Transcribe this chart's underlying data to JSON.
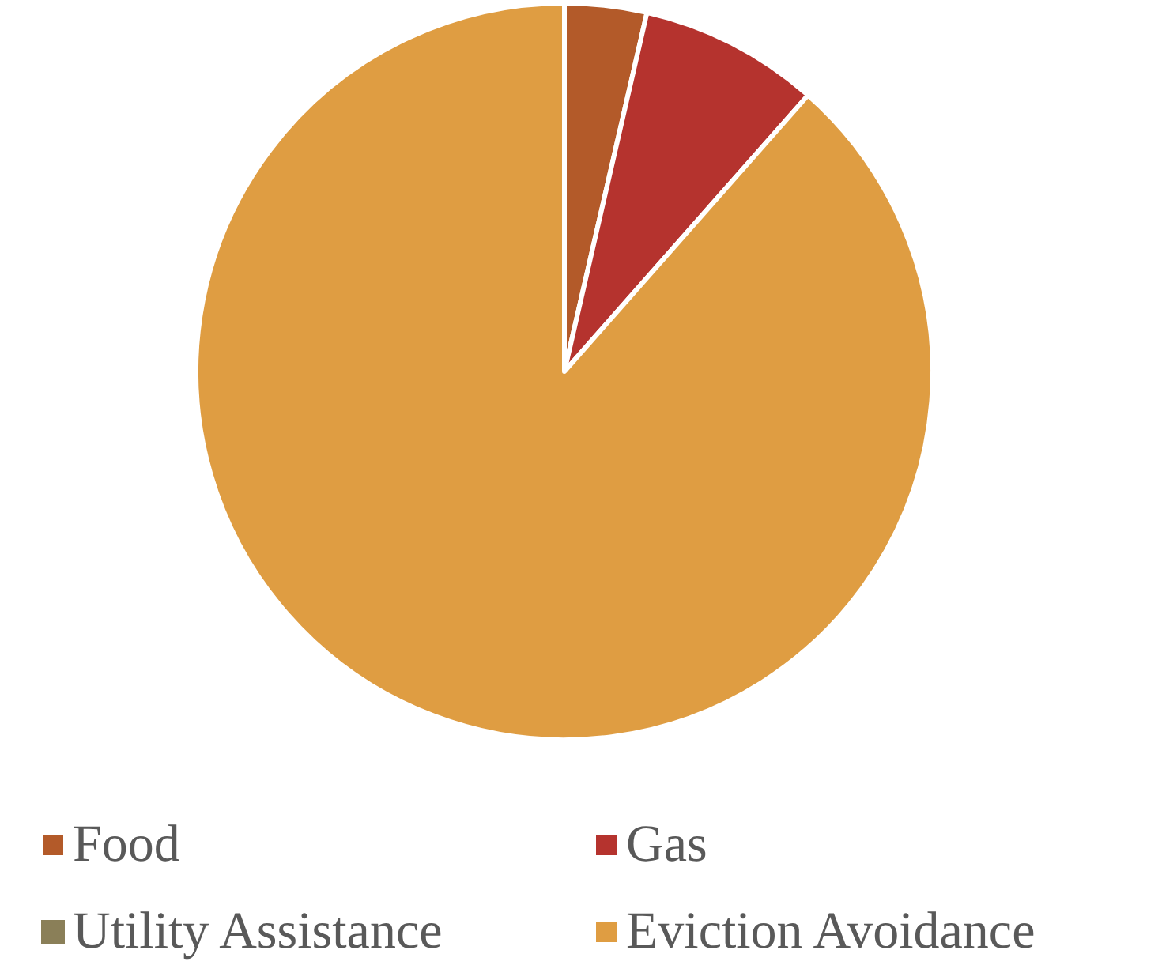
{
  "chart_data": {
    "type": "pie",
    "categories": [
      "Food",
      "Gas",
      "Utility Assistance",
      "Eviction Avoidance"
    ],
    "values": [
      3.6,
      7.9,
      0,
      88.5
    ],
    "colors": [
      "#b35a29",
      "#b5332e",
      "#8a7f58",
      "#df9d42"
    ],
    "legend": "bottom"
  }
}
